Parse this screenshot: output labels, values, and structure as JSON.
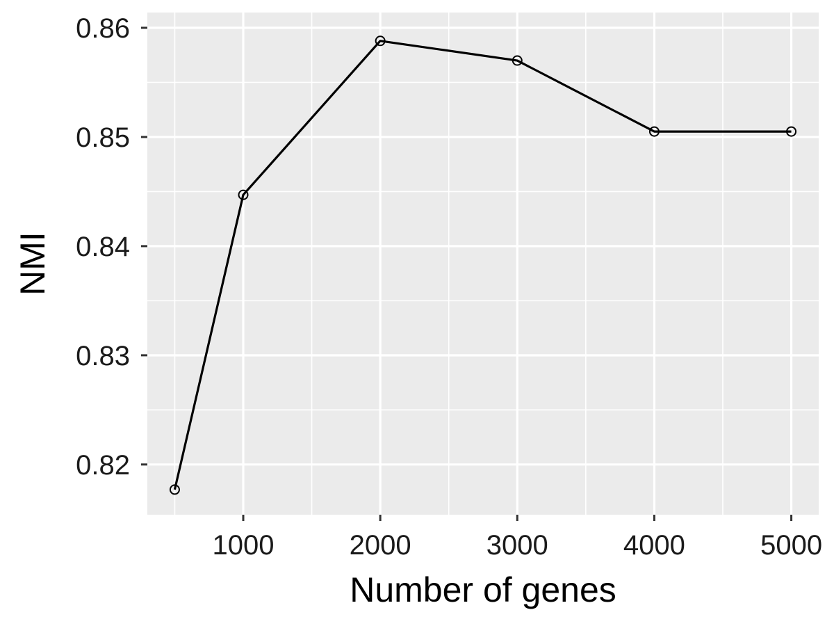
{
  "chart_data": {
    "type": "line",
    "xlabel": "Number of genes",
    "ylabel": "NMI",
    "x": [
      500,
      1000,
      2000,
      3000,
      4000,
      5000
    ],
    "y": [
      0.8177,
      0.8447,
      0.8588,
      0.857,
      0.8505,
      0.8505
    ],
    "xlim": [
      300,
      5200
    ],
    "ylim": [
      0.8154,
      0.8614
    ],
    "x_ticks": [
      1000,
      2000,
      3000,
      4000,
      5000
    ],
    "x_tick_labels": [
      "1000",
      "2000",
      "3000",
      "4000",
      "5000"
    ],
    "x_minor_ticks": [
      500,
      1500,
      2500,
      3500,
      4500
    ],
    "y_ticks": [
      0.82,
      0.83,
      0.84,
      0.85,
      0.86
    ],
    "y_tick_labels": [
      "0.82",
      "0.83",
      "0.84",
      "0.85",
      "0.86"
    ],
    "y_minor_ticks": [
      0.825,
      0.835,
      0.845,
      0.855
    ],
    "grid": true,
    "marker": "open-circle",
    "colors": {
      "panel_background": "#ebebeb",
      "grid": "#ffffff",
      "line": "#000000",
      "tick": "#333333"
    }
  }
}
